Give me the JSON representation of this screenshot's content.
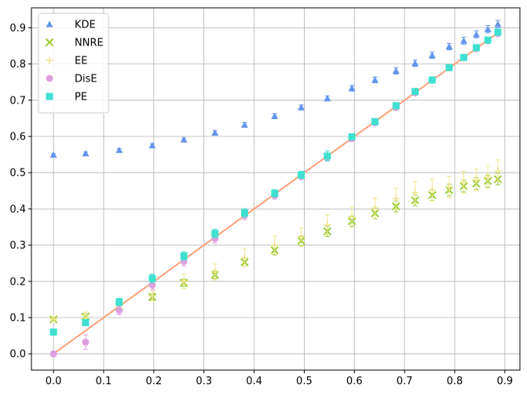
{
  "chart_data": {
    "type": "scatter",
    "title": "",
    "xlabel": "",
    "ylabel": "",
    "xlim": [
      -0.044,
      0.93
    ],
    "ylim": [
      -0.045,
      0.955
    ],
    "xticks": [
      0.0,
      0.1,
      0.2,
      0.3,
      0.4,
      0.5,
      0.6,
      0.7,
      0.8,
      0.9
    ],
    "xtick_labels": [
      "0.0",
      "0.1",
      "0.2",
      "0.3",
      "0.4",
      "0.5",
      "0.6",
      "0.7",
      "0.8",
      "0.9"
    ],
    "yticks": [
      0.0,
      0.1,
      0.2,
      0.3,
      0.4,
      0.5,
      0.6,
      0.7,
      0.8,
      0.9
    ],
    "ytick_labels": [
      "0.0",
      "0.1",
      "0.2",
      "0.3",
      "0.4",
      "0.5",
      "0.6",
      "0.7",
      "0.8",
      "0.9"
    ],
    "grid": true,
    "legend_position": "top-left",
    "x": [
      0.0,
      0.064,
      0.131,
      0.197,
      0.26,
      0.322,
      0.381,
      0.441,
      0.494,
      0.546,
      0.595,
      0.641,
      0.683,
      0.721,
      0.755,
      0.789,
      0.818,
      0.843,
      0.866,
      0.886
    ],
    "series": [
      {
        "name": "KDE",
        "marker": "triangle",
        "color": "#6495ed",
        "values": [
          0.549,
          0.553,
          0.562,
          0.575,
          0.591,
          0.61,
          0.632,
          0.656,
          0.68,
          0.705,
          0.733,
          0.756,
          0.781,
          0.802,
          0.824,
          0.848,
          0.864,
          0.882,
          0.896,
          0.91
        ],
        "errors": [
          0.004,
          0.004,
          0.004,
          0.005,
          0.005,
          0.006,
          0.006,
          0.007,
          0.007,
          0.007,
          0.008,
          0.008,
          0.009,
          0.009,
          0.009,
          0.009,
          0.01,
          0.01,
          0.01,
          0.01
        ]
      },
      {
        "name": "NNRE",
        "marker": "x",
        "color": "#9acd32",
        "values": [
          0.095,
          0.103,
          0.13,
          0.157,
          0.196,
          0.218,
          0.253,
          0.286,
          0.312,
          0.338,
          0.366,
          0.388,
          0.407,
          0.424,
          0.438,
          0.452,
          0.463,
          0.47,
          0.477,
          0.482
        ],
        "errors": [
          0.004,
          0.005,
          0.006,
          0.008,
          0.01,
          0.011,
          0.012,
          0.013,
          0.013,
          0.014,
          0.014,
          0.015,
          0.015,
          0.015,
          0.015,
          0.016,
          0.016,
          0.016,
          0.016,
          0.016
        ]
      },
      {
        "name": "EE",
        "marker": "plus",
        "color": "#f0e68c",
        "values": [
          0.096,
          0.107,
          0.132,
          0.16,
          0.2,
          0.226,
          0.265,
          0.3,
          0.322,
          0.356,
          0.378,
          0.402,
          0.428,
          0.445,
          0.452,
          0.46,
          0.474,
          0.48,
          0.488,
          0.505
        ],
        "errors": [
          0.006,
          0.008,
          0.01,
          0.014,
          0.02,
          0.022,
          0.024,
          0.025,
          0.026,
          0.027,
          0.028,
          0.028,
          0.029,
          0.03,
          0.03,
          0.03,
          0.03,
          0.03,
          0.03,
          0.03
        ]
      },
      {
        "name": "DisE",
        "marker": "circle",
        "color": "#dda0dd",
        "values": [
          0.0,
          0.032,
          0.12,
          0.19,
          0.255,
          0.318,
          0.382,
          0.437,
          0.491,
          0.544,
          0.594,
          0.638,
          0.68,
          0.72,
          0.755,
          0.79,
          0.818,
          0.842,
          0.864,
          0.884
        ],
        "errors": [
          0.002,
          0.02,
          0.012,
          0.012,
          0.012,
          0.012,
          0.012,
          0.01,
          0.01,
          0.01,
          0.008,
          0.008,
          0.008,
          0.006,
          0.006,
          0.006,
          0.005,
          0.005,
          0.005,
          0.005
        ]
      },
      {
        "name": "PE",
        "marker": "square",
        "color": "#40e0d0",
        "values": [
          0.06,
          0.086,
          0.143,
          0.208,
          0.27,
          0.332,
          0.389,
          0.443,
          0.494,
          0.546,
          0.599,
          0.641,
          0.685,
          0.724,
          0.756,
          0.79,
          0.818,
          0.845,
          0.866,
          0.888
        ],
        "errors": [
          0.006,
          0.008,
          0.01,
          0.012,
          0.012,
          0.012,
          0.012,
          0.01,
          0.01,
          0.014,
          0.008,
          0.008,
          0.008,
          0.006,
          0.006,
          0.006,
          0.005,
          0.005,
          0.005,
          0.005
        ]
      }
    ],
    "reference_line": {
      "color": "#ffa07a",
      "x": [
        0.0,
        0.886
      ],
      "y": [
        0.0,
        0.886
      ]
    }
  }
}
